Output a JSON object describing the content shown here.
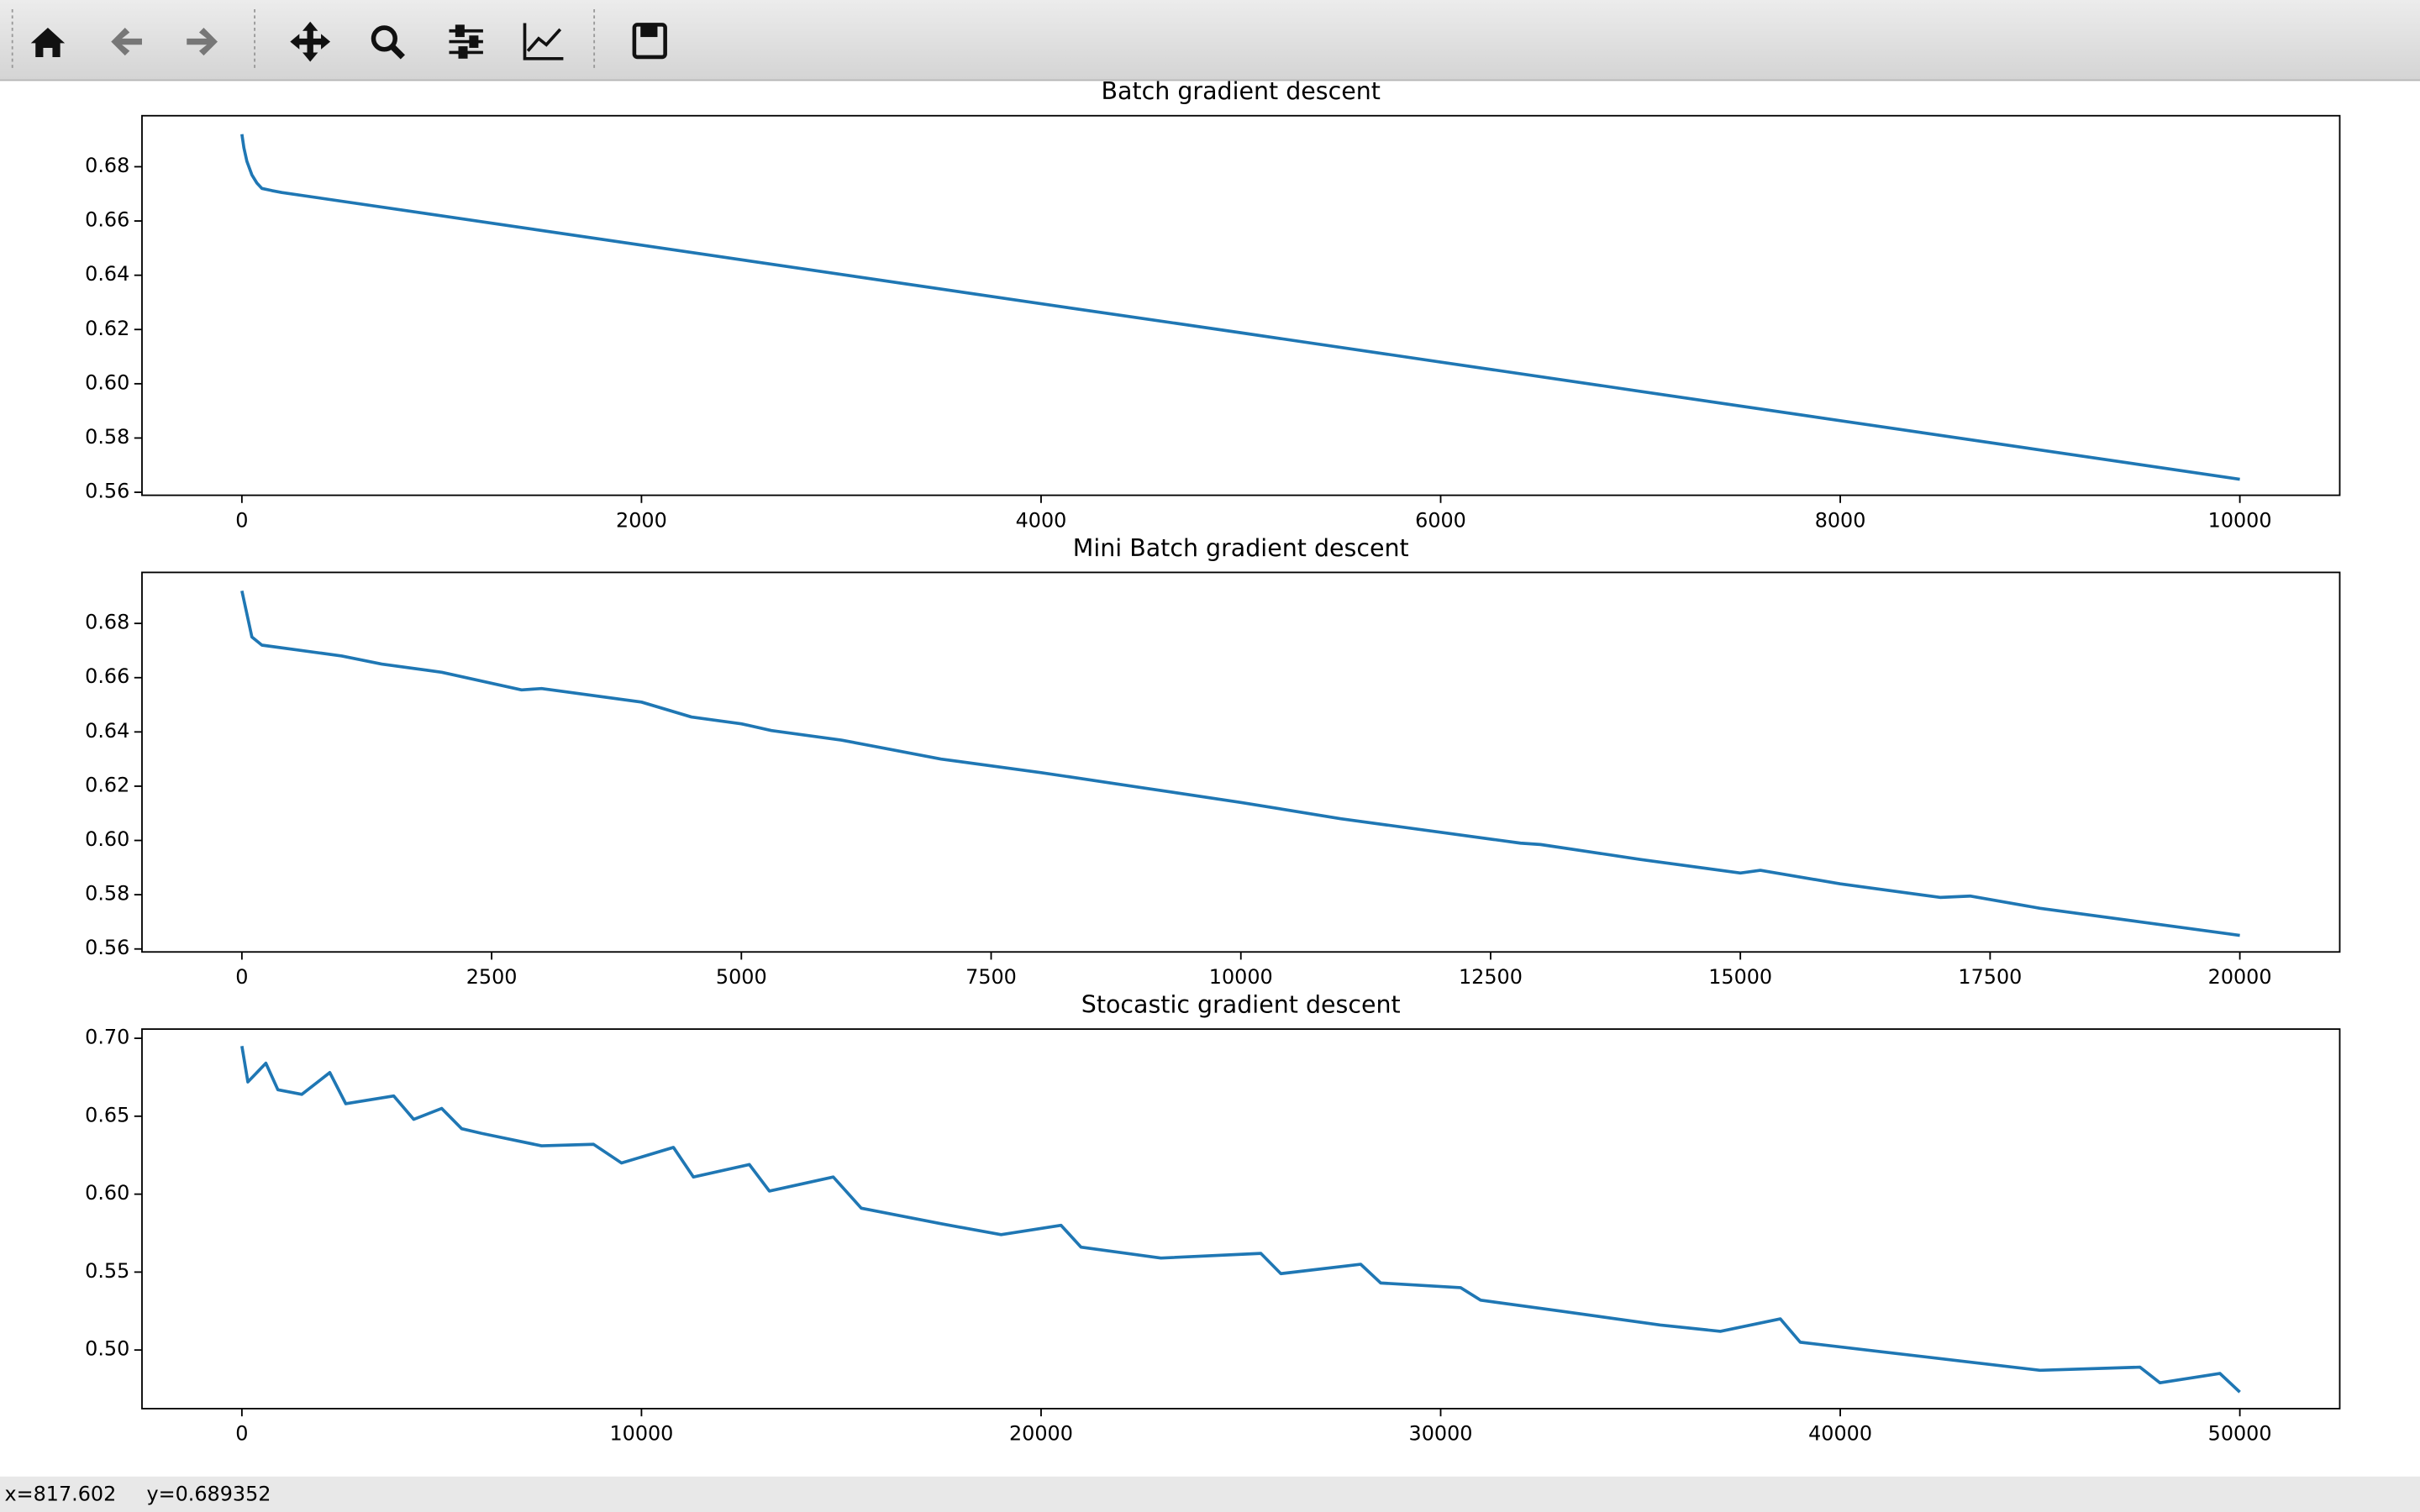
{
  "status": {
    "x": "x=817.602",
    "y": "y=0.689352"
  },
  "chart_data": [
    {
      "type": "line",
      "title": "Batch gradient descent",
      "color": "#1f77b4",
      "x": [
        0,
        10,
        25,
        50,
        75,
        100,
        150,
        200,
        1000,
        2000,
        3000,
        4000,
        5000,
        6000,
        7000,
        8000,
        9000,
        10000
      ],
      "values": [
        0.692,
        0.687,
        0.682,
        0.677,
        0.674,
        0.672,
        0.6712,
        0.6705,
        0.6619,
        0.6511,
        0.6403,
        0.6295,
        0.6188,
        0.608,
        0.5972,
        0.5864,
        0.5756,
        0.5648
      ],
      "xlim": [
        -500,
        10500
      ],
      "ylim": [
        0.5589,
        0.6988
      ],
      "xticks": [
        0,
        2000,
        4000,
        6000,
        8000,
        10000
      ],
      "yticks": [
        0.56,
        0.58,
        {
          "value": 0.6,
          "label": "0.60"
        },
        0.62,
        0.64,
        0.66,
        0.68
      ]
    },
    {
      "type": "line",
      "title": "Mini Batch gradient descent",
      "color": "#1f77b4",
      "x": [
        0,
        100,
        200,
        1000,
        1400,
        2000,
        2800,
        3000,
        4000,
        4500,
        5000,
        5300,
        6000,
        7000,
        8000,
        9000,
        10000,
        11000,
        12000,
        12800,
        13000,
        14000,
        15000,
        15200,
        16000,
        17000,
        17300,
        18000,
        19000,
        19800,
        20000
      ],
      "values": [
        0.692,
        0.675,
        0.672,
        0.668,
        0.665,
        0.662,
        0.6555,
        0.656,
        0.651,
        0.6455,
        0.643,
        0.6405,
        0.637,
        0.63,
        0.625,
        0.6195,
        0.614,
        0.608,
        0.603,
        0.599,
        0.5985,
        0.593,
        0.588,
        0.589,
        0.584,
        0.579,
        0.5795,
        0.575,
        0.57,
        0.566,
        0.565
      ],
      "xlim": [
        -1000,
        21000
      ],
      "ylim": [
        0.5589,
        0.6988
      ],
      "xticks": [
        0,
        2500,
        5000,
        7500,
        10000,
        12500,
        15000,
        17500,
        20000
      ],
      "yticks": [
        0.56,
        0.58,
        {
          "value": 0.6,
          "label": "0.60"
        },
        0.62,
        0.64,
        0.66,
        0.68
      ]
    },
    {
      "type": "line",
      "title": "Stocastic gradient descent",
      "color": "#1f77b4",
      "x": [
        0,
        150,
        600,
        900,
        1500,
        2200,
        2600,
        3800,
        4300,
        5000,
        5500,
        6000,
        7500,
        8800,
        9500,
        10800,
        11300,
        12700,
        13200,
        14800,
        15500,
        17500,
        19000,
        20500,
        21000,
        23000,
        25500,
        26000,
        28000,
        28500,
        30500,
        31000,
        33000,
        35500,
        37000,
        38500,
        39000,
        41000,
        43000,
        45000,
        47500,
        48000,
        49500,
        50000
      ],
      "values": [
        0.695,
        0.672,
        0.684,
        0.667,
        0.664,
        0.678,
        0.658,
        0.663,
        0.648,
        0.655,
        0.642,
        0.639,
        0.631,
        0.632,
        0.62,
        0.63,
        0.611,
        0.619,
        0.602,
        0.611,
        0.591,
        0.581,
        0.574,
        0.58,
        0.566,
        0.559,
        0.562,
        0.549,
        0.555,
        0.543,
        0.54,
        0.532,
        0.525,
        0.516,
        0.512,
        0.52,
        0.505,
        0.499,
        0.493,
        0.487,
        0.489,
        0.479,
        0.485,
        0.473
      ],
      "xlim": [
        -2500,
        52500
      ],
      "ylim": [
        0.4624,
        0.7059
      ],
      "xticks": [
        0,
        10000,
        20000,
        30000,
        40000,
        50000
      ],
      "yticks": [
        {
          "value": 0.5,
          "label": "0.50"
        },
        0.55,
        {
          "value": 0.6,
          "label": "0.60"
        },
        0.65,
        {
          "value": 0.7,
          "label": "0.70"
        }
      ]
    }
  ]
}
